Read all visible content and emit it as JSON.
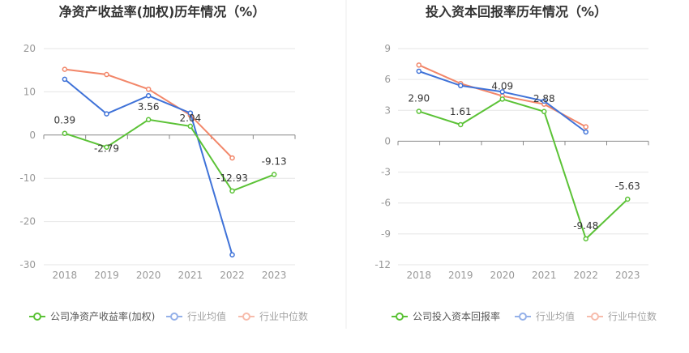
{
  "colors": {
    "company": "#5bc236",
    "industry_avg": "#3f72d8",
    "industry_median": "#f2876a",
    "grid": "#e6e6e6",
    "axis": "#888888",
    "tick_text": "#999999",
    "title_text": "#333333",
    "divider": "#eeeeee"
  },
  "chart_data": [
    {
      "type": "line",
      "title": "净资产收益率(加权)历年情况（%）",
      "categories": [
        "2018",
        "2019",
        "2020",
        "2021",
        "2022",
        "2023"
      ],
      "ylim": [
        -30,
        20
      ],
      "yticks": [
        20,
        10,
        0,
        -10,
        -20,
        -30
      ],
      "grid": true,
      "legend_position": "bottom",
      "series": [
        {
          "name": "公司净资产收益率(加权)",
          "color_key": "company",
          "values": [
            0.39,
            -2.79,
            3.56,
            2.04,
            -12.93,
            -9.13
          ],
          "labels": [
            "0.39",
            "-2.79",
            "3.56",
            "2.04",
            "-12.93",
            "-9.13"
          ]
        },
        {
          "name": "行业均值",
          "color_key": "industry_avg",
          "values": [
            12.9,
            4.9,
            9.1,
            5.1,
            -27.7,
            null
          ]
        },
        {
          "name": "行业中位数",
          "color_key": "industry_median",
          "values": [
            15.2,
            14.0,
            10.6,
            4.6,
            -5.3,
            null
          ]
        }
      ]
    },
    {
      "type": "line",
      "title": "投入资本回报率历年情况（%）",
      "categories": [
        "2018",
        "2019",
        "2020",
        "2021",
        "2022",
        "2023"
      ],
      "ylim": [
        -12,
        9
      ],
      "yticks": [
        9,
        6,
        3,
        0,
        -3,
        -6,
        -9,
        -12
      ],
      "grid": true,
      "legend_position": "bottom",
      "series": [
        {
          "name": "公司投入资本回报率",
          "color_key": "company",
          "values": [
            2.9,
            1.61,
            4.09,
            2.88,
            -9.48,
            -5.63
          ],
          "labels": [
            "2.90",
            "1.61",
            "4.09",
            "2.88",
            "-9.48",
            "-5.63"
          ]
        },
        {
          "name": "行业均值",
          "color_key": "industry_avg",
          "values": [
            6.8,
            5.4,
            4.8,
            3.9,
            0.9,
            null
          ]
        },
        {
          "name": "行业中位数",
          "color_key": "industry_median",
          "values": [
            7.4,
            5.6,
            4.4,
            3.6,
            1.4,
            null
          ]
        }
      ]
    }
  ]
}
